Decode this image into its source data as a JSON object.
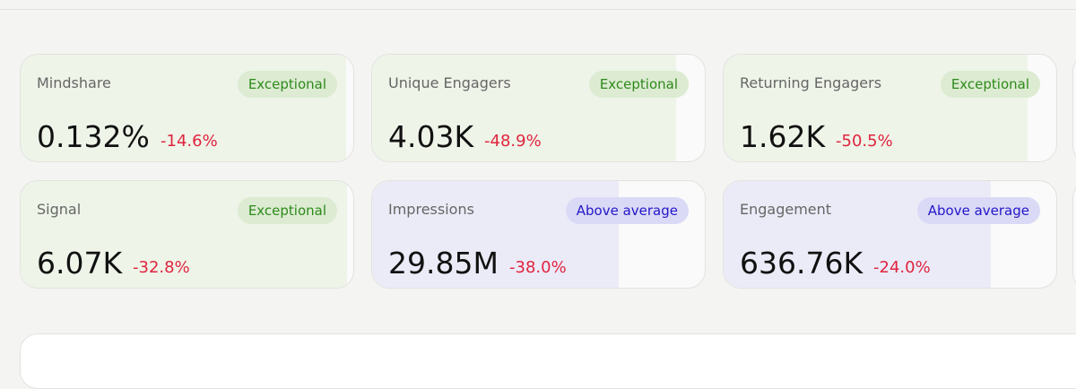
{
  "cards": [
    {
      "label": "Mindshare",
      "badge": "Exceptional",
      "value": "0.132%",
      "change": "-14.6%",
      "tone": "green"
    },
    {
      "label": "Unique Engagers",
      "badge": "Exceptional",
      "value": "4.03K",
      "change": "-48.9%",
      "tone": "green"
    },
    {
      "label": "Returning Engagers",
      "badge": "Exceptional",
      "value": "1.62K",
      "change": "-50.5%",
      "tone": "green"
    },
    {
      "label": "Signal",
      "badge": "Exceptional",
      "value": "6.07K",
      "change": "-32.8%",
      "tone": "green"
    },
    {
      "label": "Impressions",
      "badge": "Above average",
      "value": "29.85M",
      "change": "-38.0%",
      "tone": "purple"
    },
    {
      "label": "Engagement",
      "badge": "Above average",
      "value": "636.76K",
      "change": "-24.0%",
      "tone": "purple"
    }
  ]
}
